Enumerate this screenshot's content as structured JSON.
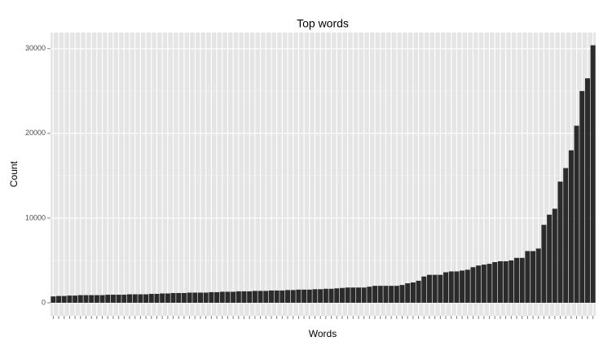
{
  "chart_data": {
    "type": "bar",
    "title": "Top words",
    "x_label": "Words",
    "y_label": "Count",
    "categories": [
      null,
      null,
      null,
      null,
      null,
      null,
      null,
      null,
      null,
      null,
      null,
      null,
      null,
      null,
      null,
      null,
      null,
      null,
      null,
      null,
      null,
      null,
      null,
      null,
      null,
      null,
      null,
      null,
      null,
      null,
      null,
      null,
      null,
      null,
      null,
      null,
      null,
      null,
      null,
      null,
      null,
      null,
      null,
      null,
      null,
      null,
      null,
      null,
      null,
      null,
      null,
      null,
      null,
      null,
      null,
      null,
      null,
      null,
      null,
      null,
      null,
      null,
      null,
      null,
      null,
      null,
      null,
      null,
      null,
      null,
      null,
      null,
      null,
      null,
      null,
      null,
      null,
      null,
      null,
      null,
      null,
      null,
      null,
      null,
      null,
      null,
      null,
      null,
      null,
      null,
      null,
      null,
      null,
      null,
      null,
      null,
      null,
      null,
      null,
      null
    ],
    "values": [
      750,
      800,
      800,
      850,
      850,
      900,
      900,
      900,
      900,
      900,
      950,
      950,
      950,
      950,
      1000,
      1000,
      1000,
      1000,
      1050,
      1050,
      1100,
      1100,
      1150,
      1150,
      1150,
      1200,
      1200,
      1200,
      1200,
      1250,
      1250,
      1300,
      1300,
      1300,
      1350,
      1350,
      1350,
      1400,
      1400,
      1400,
      1450,
      1450,
      1450,
      1500,
      1500,
      1550,
      1550,
      1550,
      1600,
      1600,
      1650,
      1650,
      1700,
      1750,
      1800,
      1800,
      1800,
      1800,
      1900,
      2000,
      2000,
      2000,
      2000,
      2000,
      2100,
      2300,
      2400,
      2600,
      3100,
      3300,
      3300,
      3300,
      3600,
      3700,
      3700,
      3800,
      3900,
      4200,
      4400,
      4500,
      4600,
      4800,
      4900,
      4900,
      5000,
      5300,
      5300,
      6100,
      6100,
      6400,
      9200,
      10400,
      11100,
      14300,
      15900,
      18000,
      20900,
      25000,
      26500,
      30400
    ],
    "color": "#2b2b2b",
    "ylim": [
      -1540,
      31900
    ],
    "yticks": [
      0,
      10000,
      20000,
      30000
    ],
    "grid": true
  }
}
